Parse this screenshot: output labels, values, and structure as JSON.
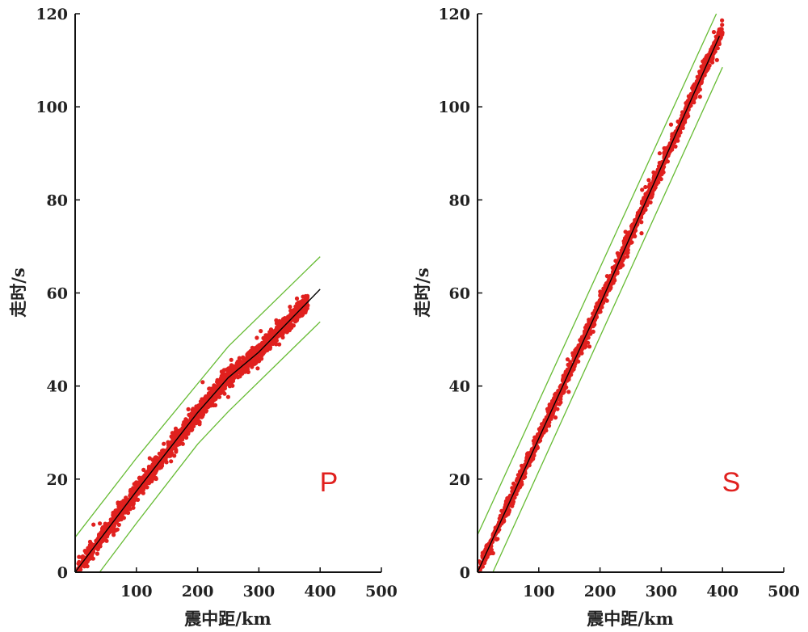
{
  "chart_data": [
    {
      "type": "scatter",
      "panel_label": "P",
      "xlabel": "震中距/km",
      "ylabel": "走时/s",
      "xlim": [
        0,
        500
      ],
      "ylim": [
        0,
        120
      ],
      "xticks": [
        "100",
        "200",
        "300",
        "400",
        "500"
      ],
      "yticks": [
        "0",
        "20",
        "40",
        "60",
        "80",
        "100",
        "120"
      ],
      "colors": {
        "points": "#e0201e",
        "fit": "#000000",
        "bounds": "#66bb33"
      },
      "fit_line": [
        [
          0,
          0
        ],
        [
          100,
          17.4
        ],
        [
          200,
          34.3
        ],
        [
          250,
          41.8
        ],
        [
          300,
          47.3
        ],
        [
          400,
          60.8
        ]
      ],
      "upper_bound": [
        [
          0,
          7.5
        ],
        [
          100,
          24.5
        ],
        [
          250,
          48.5
        ],
        [
          400,
          67.8
        ]
      ],
      "lower_bound": [
        [
          40,
          0
        ],
        [
          100,
          10.5
        ],
        [
          200,
          27.5
        ],
        [
          250,
          34.5
        ],
        [
          400,
          53.8
        ]
      ],
      "band_max_x": 380,
      "point_count": 2000,
      "noise_sd": 1.3
    },
    {
      "type": "scatter",
      "panel_label": "S",
      "xlabel": "震中距/km",
      "ylabel": "走时/s",
      "xlim": [
        0,
        500
      ],
      "ylim": [
        0,
        120
      ],
      "xticks": [
        "100",
        "200",
        "300",
        "400",
        "500"
      ],
      "yticks": [
        "0",
        "20",
        "40",
        "60",
        "80",
        "100",
        "120"
      ],
      "colors": {
        "points": "#e0201e",
        "fit": "#000000",
        "bounds": "#66bb33"
      },
      "fit_line": [
        [
          0,
          0
        ],
        [
          200,
          57.5
        ],
        [
          395,
          115.2
        ]
      ],
      "upper_bound": [
        [
          0,
          8
        ],
        [
          390,
          120
        ]
      ],
      "lower_bound": [
        [
          25,
          0
        ],
        [
          400,
          108.5
        ]
      ],
      "band_max_x": 400,
      "point_count": 2000,
      "noise_sd": 1.2
    }
  ]
}
